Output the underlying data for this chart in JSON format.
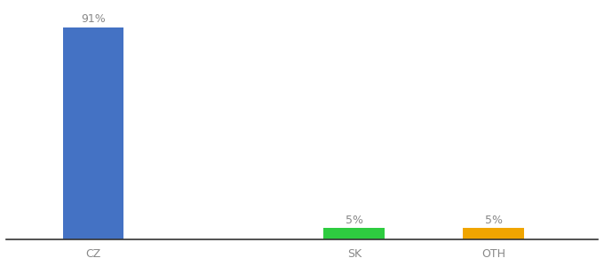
{
  "categories": [
    "CZ",
    "SK",
    "OTH"
  ],
  "values": [
    91,
    5,
    5
  ],
  "bar_colors": [
    "#4472c4",
    "#2ecc40",
    "#f0a500"
  ],
  "ylim": [
    0,
    100
  ],
  "bar_labels": [
    "91%",
    "5%",
    "5%"
  ],
  "background_color": "#ffffff",
  "label_fontsize": 9,
  "tick_fontsize": 9,
  "bar_width": 0.35,
  "x_positions": [
    0.5,
    2.0,
    2.8
  ],
  "xlim": [
    0.0,
    3.4
  ]
}
